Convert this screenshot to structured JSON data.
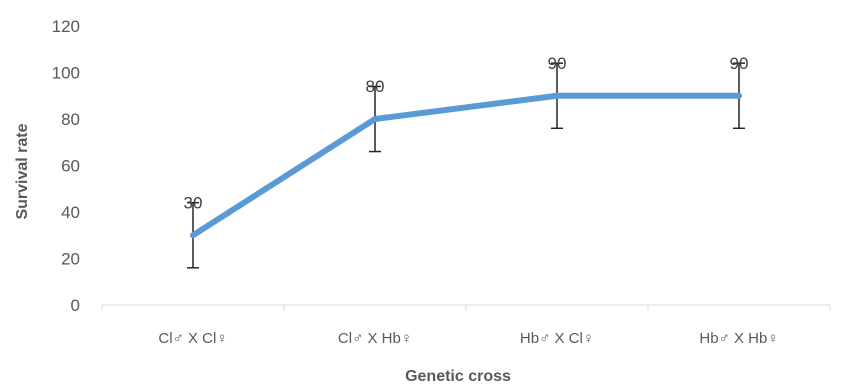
{
  "chart_data": {
    "type": "line",
    "title": "",
    "xlabel": "Genetic cross",
    "ylabel": "Survival rate",
    "ylim": [
      0,
      120
    ],
    "yticks": [
      0,
      20,
      40,
      60,
      80,
      100,
      120
    ],
    "grid": false,
    "legend": "none",
    "categories": [
      "Cl♂ X Cl♀",
      "Cl♂ X Hb♀",
      "Hb♂ X Cl♀",
      "Hb♂ X Hb♀"
    ],
    "series": [
      {
        "values": [
          30,
          80,
          90,
          90
        ],
        "error_low": [
          16,
          66,
          76,
          76
        ],
        "error_high": [
          44,
          94,
          104,
          104
        ],
        "data_labels": [
          "30",
          "80",
          "90",
          "90"
        ],
        "color": "#5B9BD5"
      }
    ],
    "colors": {
      "line": "#5B9BD5",
      "error_bar": "#262626",
      "axis": "#D9D9D9",
      "text": "#595959"
    }
  }
}
